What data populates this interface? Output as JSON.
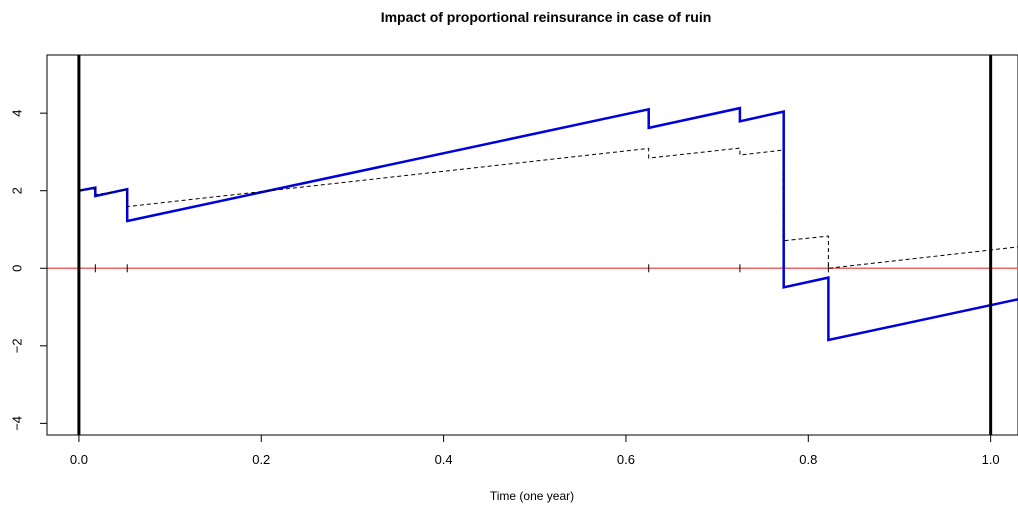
{
  "chart_data": {
    "type": "line",
    "title": "Impact of proportional reinsurance in case of ruin",
    "xlabel": "Time (one year)",
    "ylabel": "",
    "xlim": [
      -0.035,
      1.03
    ],
    "ylim": [
      -4.3,
      5.5
    ],
    "xticks": [
      0.0,
      0.2,
      0.4,
      0.6,
      0.8,
      1.0
    ],
    "xtick_labels": [
      "0.0",
      "0.2",
      "0.4",
      "0.6",
      "0.8",
      "1.0"
    ],
    "yticks": [
      -4,
      -2,
      0,
      2,
      4
    ],
    "ytick_labels": [
      "−4",
      "−2",
      "0",
      "2",
      "4"
    ],
    "grid": false,
    "colors": {
      "main": "#0000dd",
      "reinsured": "#000000",
      "zero_line": "#ee6666",
      "bounds": "#000000"
    },
    "series": [
      {
        "style": "solid",
        "color": "#0000dd",
        "points": [
          [
            0.0,
            2.0
          ],
          [
            0.018,
            2.08
          ],
          [
            0.018,
            1.86
          ],
          [
            0.053,
            2.04
          ],
          [
            0.053,
            1.22
          ],
          [
            0.625,
            4.1
          ],
          [
            0.625,
            3.62
          ],
          [
            0.725,
            4.13
          ],
          [
            0.725,
            3.79
          ],
          [
            0.773,
            4.04
          ],
          [
            0.773,
            -0.49
          ],
          [
            0.822,
            -0.24
          ],
          [
            0.822,
            -1.85
          ],
          [
            1.03,
            -0.8
          ]
        ]
      },
      {
        "style": "dashed",
        "color": "#000000",
        "points": [
          [
            0.0,
            2.0
          ],
          [
            0.018,
            2.05
          ],
          [
            0.018,
            1.9
          ],
          [
            0.053,
            2.02
          ],
          [
            0.053,
            1.59
          ],
          [
            0.625,
            3.09
          ],
          [
            0.625,
            2.84
          ],
          [
            0.725,
            3.1
          ],
          [
            0.725,
            2.92
          ],
          [
            0.773,
            3.05
          ],
          [
            0.773,
            0.71
          ],
          [
            0.822,
            0.83
          ],
          [
            0.822,
            0.0
          ],
          [
            1.03,
            0.55
          ]
        ]
      }
    ],
    "reference_lines": {
      "horizontal_y": 0,
      "vertical_x": [
        0.0,
        1.0
      ]
    },
    "claim_times": [
      0.018,
      0.053,
      0.625,
      0.725,
      0.773,
      0.822
    ]
  }
}
